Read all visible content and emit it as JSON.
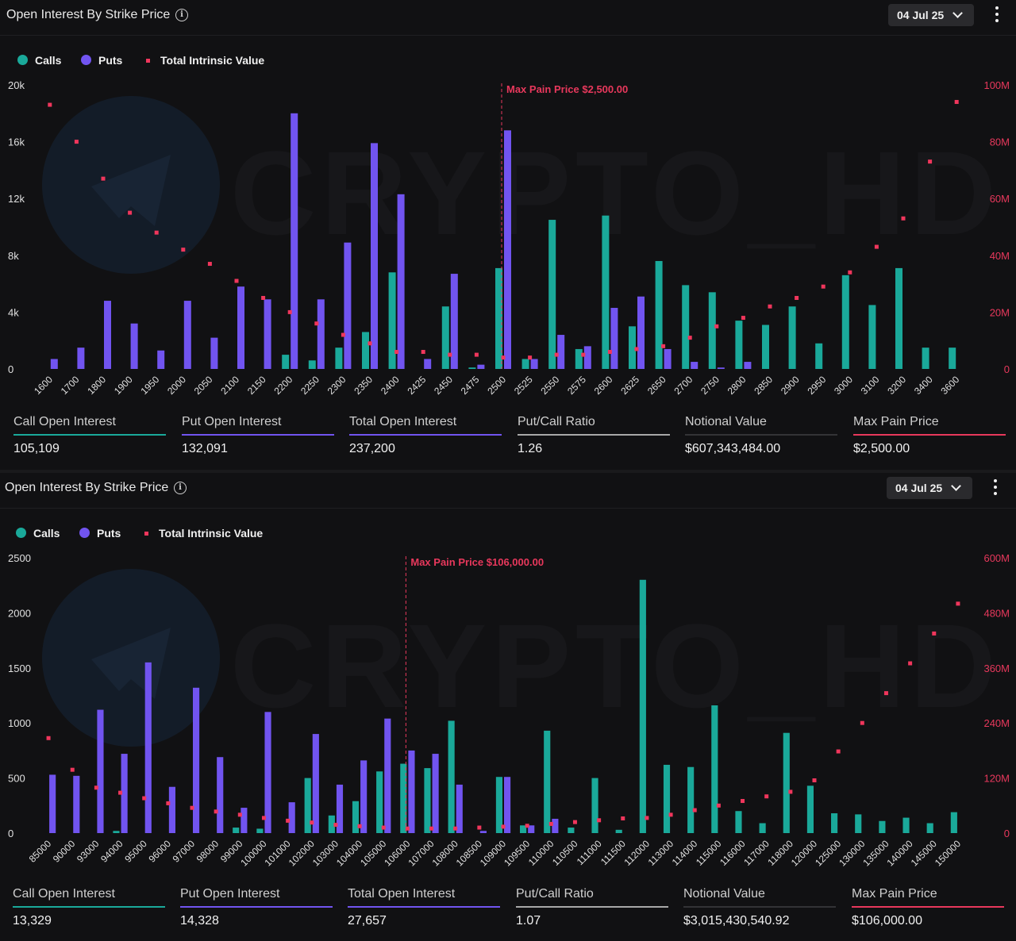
{
  "colors": {
    "calls": "#1aa99a",
    "puts": "#7154f0",
    "intrinsic": "#f0365c",
    "maxpain": "#e8385c",
    "axis_right": "#e8385c",
    "neutral": "#a8a8a8"
  },
  "panels": [
    {
      "title": "Open Interest By Strike Price",
      "date": "04 Jul 25",
      "legend": {
        "calls": "Calls",
        "puts": "Puts",
        "intrinsic": "Total Intrinsic Value"
      },
      "watermark": "CRYPTO_HD",
      "stats": [
        {
          "label": "Call Open Interest",
          "value": "105,109",
          "color": "#1aa99a"
        },
        {
          "label": "Put Open Interest",
          "value": "132,091",
          "color": "#7154f0"
        },
        {
          "label": "Total Open Interest",
          "value": "237,200",
          "color": "#7154f0"
        },
        {
          "label": "Put/Call Ratio",
          "value": "1.26",
          "color": "#a8a8a8"
        },
        {
          "label": "Notional Value",
          "value": "$607,343,484.00",
          "color": "#333336"
        },
        {
          "label": "Max Pain Price",
          "value": "$2,500.00",
          "color": "#e8385c"
        }
      ]
    },
    {
      "title": "Open Interest By Strike Price",
      "date": "04 Jul 25",
      "legend": {
        "calls": "Calls",
        "puts": "Puts",
        "intrinsic": "Total Intrinsic Value"
      },
      "watermark": "CRYPTO_HD",
      "stats": [
        {
          "label": "Call Open Interest",
          "value": "13,329",
          "color": "#1aa99a"
        },
        {
          "label": "Put Open Interest",
          "value": "14,328",
          "color": "#7154f0"
        },
        {
          "label": "Total Open Interest",
          "value": "27,657",
          "color": "#7154f0"
        },
        {
          "label": "Put/Call Ratio",
          "value": "1.07",
          "color": "#a8a8a8"
        },
        {
          "label": "Notional Value",
          "value": "$3,015,430,540.92",
          "color": "#333336"
        },
        {
          "label": "Max Pain Price",
          "value": "$106,000.00",
          "color": "#e8385c"
        }
      ]
    }
  ],
  "chart_data": [
    {
      "type": "bar",
      "categories": [
        "1600",
        "1700",
        "1800",
        "1900",
        "1950",
        "2000",
        "2050",
        "2100",
        "2150",
        "2200",
        "2250",
        "2300",
        "2350",
        "2400",
        "2425",
        "2450",
        "2475",
        "2500",
        "2525",
        "2550",
        "2575",
        "2600",
        "2625",
        "2650",
        "2700",
        "2750",
        "2800",
        "2850",
        "2900",
        "2950",
        "3000",
        "3100",
        "3200",
        "3400",
        "3600"
      ],
      "series": [
        {
          "name": "Calls",
          "axis": "left",
          "values": [
            0,
            0,
            0,
            0,
            0,
            0,
            0,
            0,
            0,
            1000,
            600,
            1500,
            2600,
            6800,
            0,
            4400,
            100,
            7100,
            700,
            10500,
            1400,
            10800,
            3000,
            7600,
            5900,
            5400,
            3400,
            3100,
            4400,
            1800,
            6600,
            4500,
            7100,
            1500,
            1500
          ]
        },
        {
          "name": "Puts",
          "axis": "left",
          "values": [
            700,
            1500,
            4800,
            3200,
            1300,
            4800,
            2200,
            5800,
            4900,
            18000,
            4900,
            8900,
            15900,
            12300,
            700,
            6700,
            300,
            16800,
            700,
            2400,
            1600,
            4300,
            5100,
            1400,
            500,
            100,
            500,
            0,
            0,
            0,
            0,
            0,
            0,
            0,
            0
          ]
        },
        {
          "name": "Total Intrinsic Value",
          "axis": "right",
          "type": "scatter",
          "values": [
            93,
            80,
            67,
            55,
            48,
            42,
            37,
            31,
            25,
            20,
            16,
            12,
            9,
            6,
            6,
            5,
            5,
            4,
            4,
            5,
            5,
            6,
            7,
            8,
            11,
            15,
            18,
            22,
            25,
            29,
            34,
            43,
            53,
            73,
            94
          ]
        }
      ],
      "yleft": {
        "ticks": [
          "0",
          "4k",
          "8k",
          "12k",
          "16k",
          "20k"
        ],
        "max": 20000
      },
      "yright": {
        "ticks": [
          "0",
          "20M",
          "40M",
          "60M",
          "80M",
          "100M"
        ],
        "max": 100
      },
      "max_pain": {
        "category": "2500",
        "label": "Max Pain Price $2,500.00"
      }
    },
    {
      "type": "bar",
      "categories": [
        "85000",
        "90000",
        "93000",
        "94000",
        "95000",
        "96000",
        "97000",
        "98000",
        "99000",
        "100000",
        "101000",
        "102000",
        "103000",
        "104000",
        "105000",
        "106000",
        "107000",
        "108000",
        "108500",
        "109000",
        "109500",
        "110000",
        "110500",
        "111000",
        "111500",
        "112000",
        "113000",
        "114000",
        "115000",
        "116000",
        "117000",
        "118000",
        "120000",
        "125000",
        "130000",
        "135000",
        "140000",
        "145000",
        "150000"
      ],
      "series": [
        {
          "name": "Calls",
          "axis": "left",
          "values": [
            0,
            0,
            0,
            20,
            0,
            0,
            0,
            0,
            50,
            40,
            0,
            500,
            160,
            290,
            560,
            630,
            590,
            1020,
            0,
            510,
            70,
            930,
            50,
            500,
            30,
            2300,
            620,
            600,
            1160,
            200,
            90,
            910,
            430,
            180,
            170,
            110,
            140,
            90,
            190
          ]
        },
        {
          "name": "Puts",
          "axis": "left",
          "values": [
            530,
            520,
            1120,
            720,
            1550,
            420,
            1320,
            690,
            230,
            1100,
            280,
            900,
            440,
            660,
            1040,
            750,
            720,
            440,
            20,
            510,
            70,
            130,
            0,
            0,
            0,
            0,
            0,
            0,
            0,
            0,
            0,
            0,
            0,
            0,
            0,
            0,
            0,
            0,
            0
          ]
        },
        {
          "name": "Total Intrinsic Value",
          "axis": "right",
          "type": "scatter",
          "values": [
            207,
            138,
            99,
            88,
            76,
            65,
            55,
            47,
            40,
            33,
            27,
            23,
            18,
            15,
            12,
            10,
            10,
            10,
            12,
            14,
            16,
            20,
            24,
            28,
            32,
            33,
            40,
            50,
            60,
            70,
            80,
            90,
            115,
            178,
            240,
            305,
            370,
            435,
            500
          ]
        }
      ],
      "yleft": {
        "ticks": [
          "0",
          "500",
          "1000",
          "1500",
          "2000",
          "2500"
        ],
        "max": 2500
      },
      "yright": {
        "ticks": [
          "0",
          "120M",
          "240M",
          "360M",
          "480M",
          "600M"
        ],
        "max": 600
      },
      "max_pain": {
        "category": "106000",
        "label": "Max Pain Price $106,000.00"
      }
    }
  ]
}
